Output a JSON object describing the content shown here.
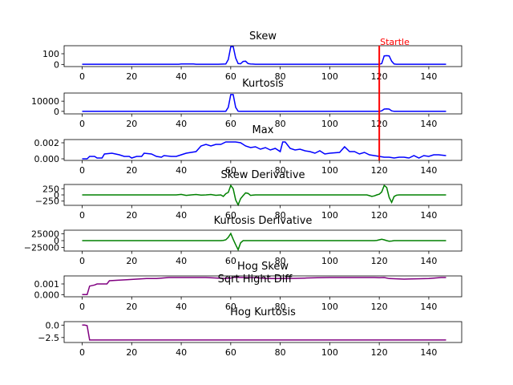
{
  "chart_data": [
    {
      "type": "line",
      "title": "Skew",
      "color": "#0000ff",
      "xlim": [
        -7.3,
        153.3
      ],
      "ylim": [
        -20,
        175
      ],
      "yticks": [
        0,
        100
      ],
      "ytick_labels": [
        "0",
        "100"
      ],
      "xticks": [
        0,
        20,
        40,
        60,
        80,
        100,
        120,
        140
      ],
      "xtick_labels": [
        "0",
        "20",
        "40",
        "60",
        "80",
        "100",
        "120",
        "140"
      ],
      "x": [
        0,
        10,
        20,
        30,
        39,
        40,
        45,
        46,
        55,
        58,
        59,
        60,
        61,
        62,
        63,
        64,
        65,
        66,
        67,
        68,
        69,
        70,
        120,
        121,
        122,
        123,
        124,
        125,
        126,
        127,
        147
      ],
      "y": [
        2,
        2,
        2,
        2,
        2,
        4,
        4,
        2,
        2,
        4,
        45,
        165,
        168,
        60,
        8,
        6,
        28,
        30,
        8,
        5,
        3,
        2,
        2,
        8,
        80,
        82,
        80,
        30,
        4,
        2,
        2
      ]
    },
    {
      "type": "line",
      "title": "Kurtosis",
      "color": "#0000ff",
      "xlim": [
        -7.3,
        153.3
      ],
      "ylim": [
        -2500,
        18000
      ],
      "yticks": [
        0,
        10000
      ],
      "ytick_labels": [
        "0",
        "10000"
      ],
      "xticks": [
        0,
        20,
        40,
        60,
        80,
        100,
        120,
        140
      ],
      "xtick_labels": [
        "0",
        "20",
        "40",
        "60",
        "80",
        "100",
        "120",
        "140"
      ],
      "x": [
        0,
        10,
        20,
        30,
        40,
        50,
        58,
        59,
        60,
        61,
        62,
        63,
        64,
        70,
        120,
        121,
        122,
        123,
        124,
        125,
        126,
        147
      ],
      "y": [
        0,
        0,
        0,
        0,
        0,
        0,
        100,
        4000,
        16500,
        16500,
        4000,
        200,
        0,
        0,
        0,
        500,
        2200,
        2400,
        2200,
        500,
        0,
        0
      ]
    },
    {
      "type": "line",
      "title": "Max",
      "color": "#0000ff",
      "xlim": [
        -7.3,
        153.3
      ],
      "ylim": [
        -0.0002,
        0.0024
      ],
      "yticks": [
        0.0,
        0.002
      ],
      "ytick_labels": [
        "0.000",
        "0.002"
      ],
      "xticks": [
        0,
        20,
        40,
        60,
        80,
        100,
        120,
        140
      ],
      "xtick_labels": [
        "0",
        "20",
        "40",
        "60",
        "80",
        "100",
        "120",
        "140"
      ],
      "x": [
        0,
        2,
        3,
        5,
        6,
        8,
        9,
        12,
        15,
        17,
        19,
        20,
        22,
        24,
        25,
        28,
        30,
        32,
        33,
        36,
        38,
        40,
        42,
        44,
        46,
        48,
        50,
        52,
        54,
        56,
        58,
        62,
        64,
        66,
        68,
        70,
        72,
        74,
        76,
        78,
        80,
        81,
        82,
        84,
        86,
        88,
        90,
        92,
        94,
        96,
        98,
        100,
        104,
        106,
        108,
        110,
        112,
        114,
        116,
        118,
        120,
        122,
        124,
        126,
        128,
        130,
        132,
        134,
        136,
        138,
        140,
        142,
        144,
        147
      ],
      "y": [
        0.0,
        0.0,
        0.0003,
        0.0003,
        0.0001,
        0.0001,
        0.0006,
        0.0007,
        0.0005,
        0.0003,
        0.0003,
        0.0001,
        0.0003,
        0.0003,
        0.0007,
        0.0006,
        0.0003,
        0.0002,
        0.0004,
        0.0003,
        0.0003,
        0.0005,
        0.0007,
        0.0008,
        0.0009,
        0.0016,
        0.0018,
        0.0016,
        0.0018,
        0.0018,
        0.0021,
        0.0021,
        0.002,
        0.0016,
        0.0014,
        0.0015,
        0.0012,
        0.0014,
        0.0011,
        0.0013,
        0.0009,
        0.0021,
        0.0021,
        0.0013,
        0.0011,
        0.0012,
        0.001,
        0.0009,
        0.0007,
        0.001,
        0.0006,
        0.0007,
        0.0008,
        0.0015,
        0.0009,
        0.0009,
        0.0006,
        0.0008,
        0.0005,
        0.0004,
        0.0003,
        0.0002,
        0.0002,
        0.0001,
        0.0002,
        0.0002,
        0.0001,
        0.0004,
        0.0001,
        0.0004,
        0.0003,
        0.0005,
        0.0005,
        0.0004
      ]
    },
    {
      "type": "line",
      "title": "Skew Derivative",
      "color": "#008000",
      "xlim": [
        -7.3,
        153.3
      ],
      "ylim": [
        -420,
        420
      ],
      "yticks": [
        -250,
        0,
        250
      ],
      "ytick_labels": [
        "−250",
        "0",
        "250"
      ],
      "xticks": [
        0,
        20,
        40,
        60,
        80,
        100,
        120,
        140
      ],
      "xtick_labels": [
        "0",
        "20",
        "40",
        "60",
        "80",
        "100",
        "120",
        "140"
      ],
      "x": [
        0,
        10,
        20,
        30,
        38,
        40,
        42,
        44,
        46,
        48,
        50,
        52,
        54,
        56,
        57,
        58,
        59,
        60,
        61,
        62,
        63,
        64,
        65,
        66,
        67,
        68,
        69,
        70,
        72,
        100,
        115,
        116,
        117,
        118,
        119,
        120,
        121,
        122,
        123,
        124,
        125,
        126,
        127,
        128,
        147
      ],
      "y": [
        0,
        0,
        0,
        0,
        0,
        20,
        -20,
        0,
        15,
        -10,
        0,
        15,
        -15,
        0,
        -60,
        50,
        100,
        380,
        250,
        -200,
        -400,
        -150,
        -30,
        80,
        60,
        -20,
        -10,
        0,
        0,
        0,
        0,
        -30,
        -60,
        -40,
        0,
        30,
        120,
        380,
        300,
        -100,
        -300,
        -60,
        -10,
        0,
        0
      ]
    },
    {
      "type": "line",
      "title": "Kurtosis Derivative",
      "color": "#008000",
      "xlim": [
        -7.3,
        153.3
      ],
      "ylim": [
        -38000,
        38000
      ],
      "yticks": [
        -25000,
        0,
        25000
      ],
      "ytick_labels": [
        "−25000",
        "0",
        "25000"
      ],
      "xticks": [
        0,
        20,
        40,
        60,
        80,
        100,
        120,
        140
      ],
      "xtick_labels": [
        "0",
        "20",
        "40",
        "60",
        "80",
        "100",
        "120",
        "140"
      ],
      "x": [
        0,
        10,
        20,
        30,
        40,
        50,
        56,
        57,
        58,
        59,
        60,
        61,
        62,
        63,
        64,
        65,
        70,
        118,
        119,
        120,
        121,
        122,
        123,
        124,
        125,
        126,
        147
      ],
      "y": [
        0,
        0,
        0,
        0,
        0,
        0,
        0,
        800,
        3000,
        12000,
        26000,
        5000,
        -15000,
        -33000,
        -8000,
        0,
        0,
        0,
        1000,
        3000,
        5000,
        3000,
        0,
        -2000,
        -1500,
        0,
        0
      ]
    },
    {
      "type": "line",
      "title": "Hog Skew",
      "color": "#800080",
      "xlim": [
        -7.3,
        153.3
      ],
      "ylim": [
        -0.0002,
        0.00175
      ],
      "yticks": [
        0.0,
        0.001
      ],
      "ytick_labels": [
        "0.000",
        "0.001"
      ],
      "xticks": [
        0,
        20,
        40,
        60,
        80,
        100,
        120,
        140
      ],
      "xtick_labels": [
        "0",
        "20",
        "40",
        "60",
        "80",
        "100",
        "120",
        "140"
      ],
      "x": [
        0,
        2,
        3,
        5,
        6,
        10,
        11,
        15,
        18,
        22,
        26,
        30,
        35,
        40,
        50,
        55,
        58,
        60,
        61,
        65,
        70,
        75,
        80,
        85,
        90,
        95,
        100,
        110,
        118,
        120,
        122,
        124,
        130,
        135,
        140,
        145,
        147
      ],
      "y": [
        0.0,
        0.0,
        0.0008,
        0.0009,
        0.001,
        0.001,
        0.0013,
        0.00135,
        0.0014,
        0.00145,
        0.0015,
        0.0015,
        0.0016,
        0.0016,
        0.0016,
        0.00155,
        0.0015,
        0.00155,
        0.00162,
        0.0016,
        0.00158,
        0.0015,
        0.0015,
        0.00152,
        0.00155,
        0.00158,
        0.0016,
        0.0016,
        0.0016,
        0.00158,
        0.0016,
        0.0015,
        0.00145,
        0.00148,
        0.0015,
        0.0016,
        0.0016
      ]
    },
    {
      "type": "line",
      "title": "Hog Kurtosis",
      "color": "#800080",
      "xlim": [
        -7.3,
        153.3
      ],
      "ylim": [
        -3.5,
        0.7
      ],
      "yticks": [
        -2.5,
        0.0
      ],
      "ytick_labels": [
        "−2.5",
        "0.0"
      ],
      "xticks": [
        0,
        20,
        40,
        60,
        80,
        100,
        120,
        140
      ],
      "xtick_labels": [
        "0",
        "20",
        "40",
        "60",
        "80",
        "100",
        "120",
        "140"
      ],
      "x": [
        0,
        1,
        2,
        3,
        10,
        20,
        40,
        60,
        80,
        100,
        120,
        140,
        147
      ],
      "y": [
        0.0,
        0.0,
        -0.1,
        -3.0,
        -3.0,
        -3.0,
        -3.0,
        -3.0,
        -3.0,
        -3.0,
        -3.0,
        -3.0,
        -3.0
      ]
    }
  ],
  "annotation": {
    "label": "Startle",
    "x": 120,
    "color": "#ff0000"
  },
  "overlapped_text": "Sqrt Hight Diff"
}
